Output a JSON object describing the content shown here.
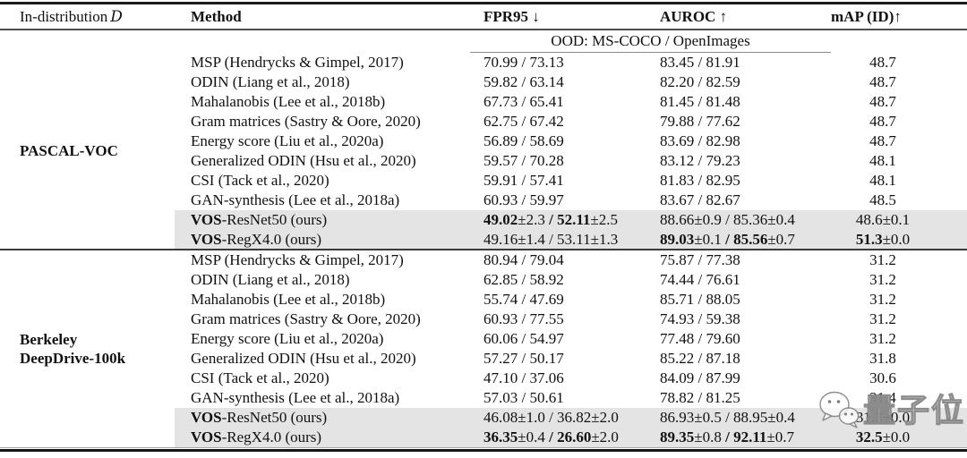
{
  "colors": {
    "row_highlight": "#e4e4e4",
    "text": "#111111",
    "rule_dark": "#1b1b1b",
    "rule_gray": "#8a8a8a",
    "watermark_gray": "#7d7d7d"
  },
  "header": {
    "col_indist": {
      "label": "In-distribution",
      "symbol": "D"
    },
    "col_method": "Method",
    "col_fpr": {
      "label": "FPR95",
      "arrow": "↓"
    },
    "col_auroc": {
      "label": "AUROC",
      "arrow": "↑"
    },
    "col_map": {
      "label": "mAP (ID)",
      "arrow": "↑"
    }
  },
  "subheader": "OOD: MS-COCO / OpenImages",
  "watermark": {
    "text": "量子位",
    "icon": "chat-bubble-icon"
  },
  "sections": [
    {
      "dataset_lines": [
        "PASCAL-VOC"
      ],
      "rows": [
        {
          "hl": false,
          "method": [
            [
              "MSP (Hendrycks & Gimpel, 2017)",
              0
            ]
          ],
          "fpr95": [
            [
              "70.99 / 73.13",
              0
            ]
          ],
          "auroc": [
            [
              "83.45 / 81.91",
              0
            ]
          ],
          "map": [
            [
              "48.7",
              0
            ]
          ]
        },
        {
          "hl": false,
          "method": [
            [
              "ODIN (Liang et al., 2018)",
              0
            ]
          ],
          "fpr95": [
            [
              "59.82 / 63.14",
              0
            ]
          ],
          "auroc": [
            [
              "82.20 / 82.59",
              0
            ]
          ],
          "map": [
            [
              "48.7",
              0
            ]
          ]
        },
        {
          "hl": false,
          "method": [
            [
              "Mahalanobis (Lee et al., 2018b)",
              0
            ]
          ],
          "fpr95": [
            [
              "67.73 / 65.41",
              0
            ]
          ],
          "auroc": [
            [
              "81.45 / 81.48",
              0
            ]
          ],
          "map": [
            [
              "48.7",
              0
            ]
          ]
        },
        {
          "hl": false,
          "method": [
            [
              "Gram matrices (Sastry & Oore, 2020)",
              0
            ]
          ],
          "fpr95": [
            [
              "62.75 / 67.42",
              0
            ]
          ],
          "auroc": [
            [
              "79.88 / 77.62",
              0
            ]
          ],
          "map": [
            [
              "48.7",
              0
            ]
          ]
        },
        {
          "hl": false,
          "method": [
            [
              "Energy score (Liu et al., 2020a)",
              0
            ]
          ],
          "fpr95": [
            [
              "56.89 / 58.69",
              0
            ]
          ],
          "auroc": [
            [
              "83.69 / 82.98",
              0
            ]
          ],
          "map": [
            [
              "48.7",
              0
            ]
          ]
        },
        {
          "hl": false,
          "method": [
            [
              "Generalized ODIN (Hsu et al., 2020)",
              0
            ]
          ],
          "fpr95": [
            [
              "59.57 / 70.28",
              0
            ]
          ],
          "auroc": [
            [
              "83.12 / 79.23",
              0
            ]
          ],
          "map": [
            [
              "48.1",
              0
            ]
          ]
        },
        {
          "hl": false,
          "method": [
            [
              "CSI (Tack et al., 2020)",
              0
            ]
          ],
          "fpr95": [
            [
              "59.91 / 57.41",
              0
            ]
          ],
          "auroc": [
            [
              "81.83 / 82.95",
              0
            ]
          ],
          "map": [
            [
              "48.1",
              0
            ]
          ]
        },
        {
          "hl": false,
          "method": [
            [
              "GAN-synthesis (Lee et al., 2018a)",
              0
            ]
          ],
          "fpr95": [
            [
              "60.93 / 59.97",
              0
            ]
          ],
          "auroc": [
            [
              "83.67 / 82.67",
              0
            ]
          ],
          "map": [
            [
              "48.5",
              0
            ]
          ]
        },
        {
          "hl": true,
          "method": [
            [
              "VOS",
              1
            ],
            [
              "-ResNet50 (ours)",
              0
            ]
          ],
          "fpr95": [
            [
              "49.02",
              1
            ],
            [
              "±2.3",
              0
            ],
            [
              " / ",
              1
            ],
            [
              "52.11",
              1
            ],
            [
              "±2.5",
              0
            ]
          ],
          "auroc": [
            [
              "88.66±0.9 / 85.36±0.4",
              0
            ]
          ],
          "map": [
            [
              "48.6±0.1",
              0
            ]
          ]
        },
        {
          "hl": true,
          "method": [
            [
              "VOS",
              1
            ],
            [
              "-RegX4.0 (ours)",
              0
            ]
          ],
          "fpr95": [
            [
              "49.16±1.4 / 53.11±1.3",
              0
            ]
          ],
          "auroc": [
            [
              "89.03",
              1
            ],
            [
              "±0.1",
              0
            ],
            [
              " / ",
              1
            ],
            [
              "85.56",
              1
            ],
            [
              "±0.7",
              0
            ]
          ],
          "map": [
            [
              "51.3",
              1
            ],
            [
              "±0.0",
              0
            ]
          ]
        }
      ]
    },
    {
      "dataset_lines": [
        "Berkeley",
        "DeepDrive-100k"
      ],
      "rows": [
        {
          "hl": false,
          "method": [
            [
              "MSP (Hendrycks & Gimpel, 2017)",
              0
            ]
          ],
          "fpr95": [
            [
              "80.94 / 79.04",
              0
            ]
          ],
          "auroc": [
            [
              "75.87 / 77.38",
              0
            ]
          ],
          "map": [
            [
              "31.2",
              0
            ]
          ]
        },
        {
          "hl": false,
          "method": [
            [
              "ODIN (Liang et al., 2018)",
              0
            ]
          ],
          "fpr95": [
            [
              "62.85 / 58.92",
              0
            ]
          ],
          "auroc": [
            [
              "74.44 / 76.61",
              0
            ]
          ],
          "map": [
            [
              "31.2",
              0
            ]
          ]
        },
        {
          "hl": false,
          "method": [
            [
              "Mahalanobis (Lee et al., 2018b)",
              0
            ]
          ],
          "fpr95": [
            [
              "55.74 / 47.69",
              0
            ]
          ],
          "auroc": [
            [
              "85.71 / 88.05",
              0
            ]
          ],
          "map": [
            [
              "31.2",
              0
            ]
          ]
        },
        {
          "hl": false,
          "method": [
            [
              "Gram matrices (Sastry & Oore, 2020)",
              0
            ]
          ],
          "fpr95": [
            [
              "60.93 / 77.55",
              0
            ]
          ],
          "auroc": [
            [
              "74.93 / 59.38",
              0
            ]
          ],
          "map": [
            [
              "31.2",
              0
            ]
          ]
        },
        {
          "hl": false,
          "method": [
            [
              "Energy score (Liu et al., 2020a)",
              0
            ]
          ],
          "fpr95": [
            [
              "60.06 / 54.97",
              0
            ]
          ],
          "auroc": [
            [
              "77.48 / 79.60",
              0
            ]
          ],
          "map": [
            [
              "31.2",
              0
            ]
          ]
        },
        {
          "hl": false,
          "method": [
            [
              "Generalized ODIN (Hsu et al., 2020)",
              0
            ]
          ],
          "fpr95": [
            [
              "57.27 / 50.17",
              0
            ]
          ],
          "auroc": [
            [
              "85.22 / 87.18",
              0
            ]
          ],
          "map": [
            [
              "31.8",
              0
            ]
          ]
        },
        {
          "hl": false,
          "method": [
            [
              "CSI (Tack et al., 2020)",
              0
            ]
          ],
          "fpr95": [
            [
              "47.10 / 37.06",
              0
            ]
          ],
          "auroc": [
            [
              "84.09 / 87.99",
              0
            ]
          ],
          "map": [
            [
              "30.6",
              0
            ]
          ]
        },
        {
          "hl": false,
          "method": [
            [
              "GAN-synthesis (Lee et al., 2018a)",
              0
            ]
          ],
          "fpr95": [
            [
              "57.03 / 50.61",
              0
            ]
          ],
          "auroc": [
            [
              "78.82 / 81.25",
              0
            ]
          ],
          "map": [
            [
              "31.4",
              0
            ]
          ]
        },
        {
          "hl": true,
          "method": [
            [
              "VOS",
              1
            ],
            [
              "-ResNet50 (ours)",
              0
            ]
          ],
          "fpr95": [
            [
              "46.08±1.0 / 36.82±2.0",
              0
            ]
          ],
          "auroc": [
            [
              "86.93±0.5 / 88.95±0.4",
              0
            ]
          ],
          "map": [
            [
              "31.3±0.0",
              0
            ]
          ]
        },
        {
          "hl": true,
          "method": [
            [
              "VOS",
              1
            ],
            [
              "-RegX4.0 (ours)",
              0
            ]
          ],
          "fpr95": [
            [
              "36.35",
              1
            ],
            [
              "±0.4",
              0
            ],
            [
              " / ",
              1
            ],
            [
              "26.60",
              1
            ],
            [
              "±2.0",
              0
            ]
          ],
          "auroc": [
            [
              "89.35",
              1
            ],
            [
              "±0.8",
              0
            ],
            [
              " / ",
              1
            ],
            [
              "92.11",
              1
            ],
            [
              "±0.7",
              0
            ]
          ],
          "map": [
            [
              "32.5",
              1
            ],
            [
              "±0.0",
              0
            ]
          ]
        }
      ]
    }
  ]
}
